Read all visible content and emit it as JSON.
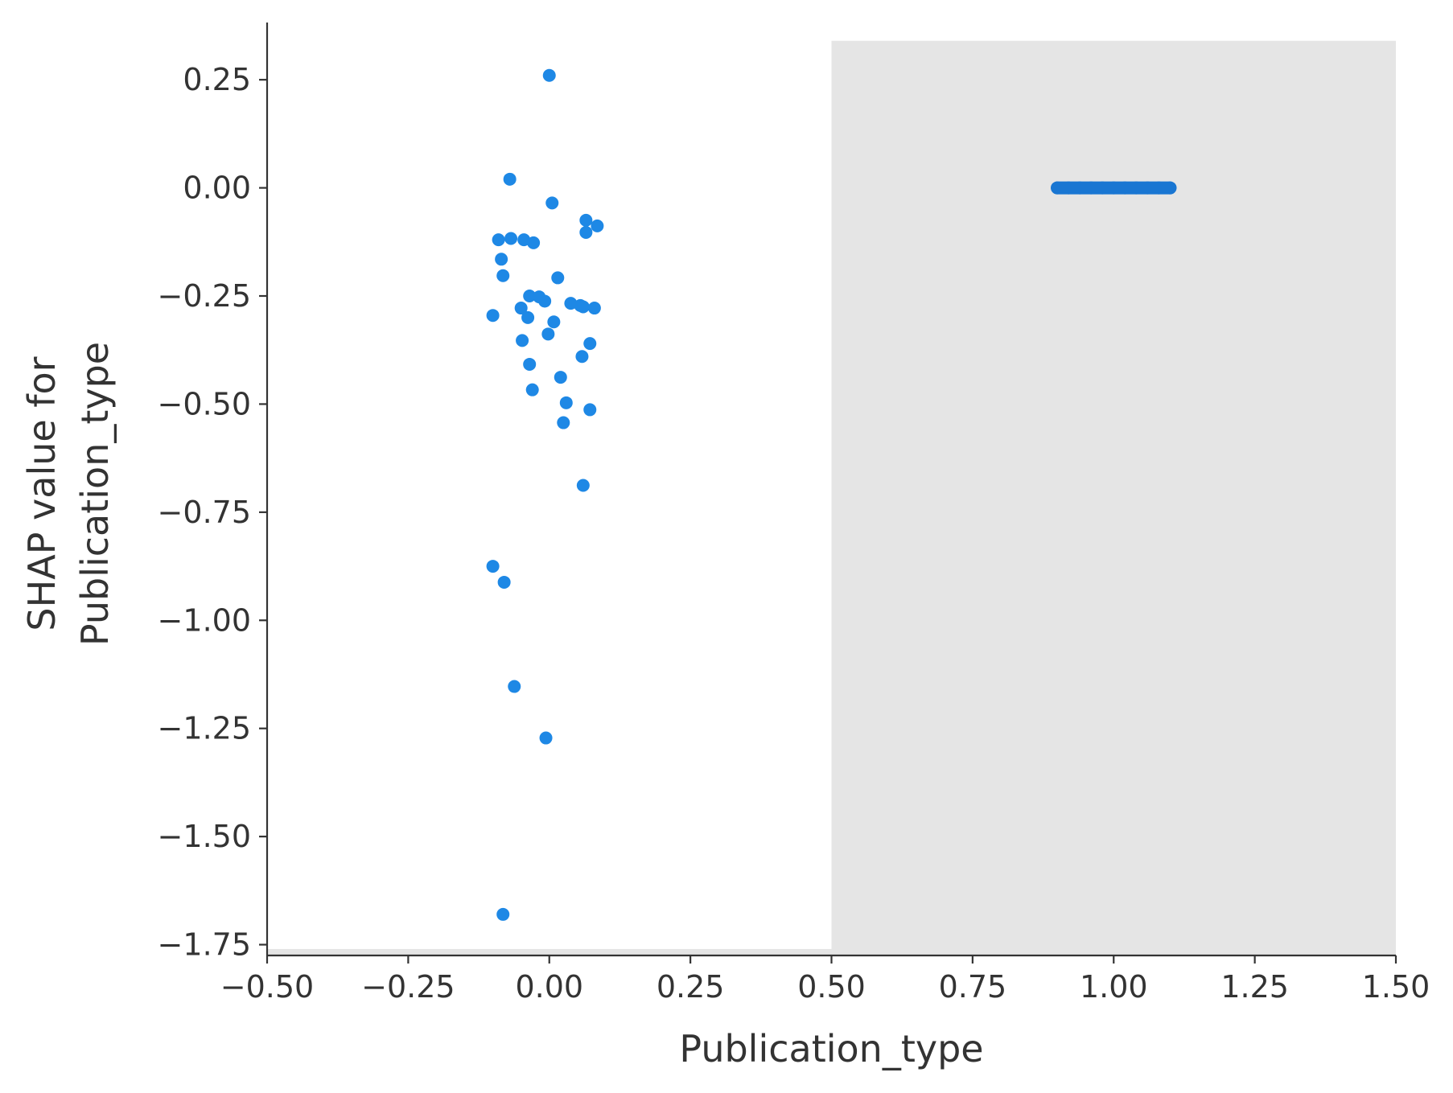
{
  "chart_data": {
    "type": "scatter",
    "xlabel": "Publication_type",
    "ylabel": [
      "SHAP value for",
      "Publication_type"
    ],
    "xlim": [
      -0.5,
      1.5
    ],
    "ylim": [
      -1.775,
      0.36
    ],
    "x_ticks": [
      -0.5,
      -0.25,
      0.0,
      0.25,
      0.5,
      0.75,
      1.0,
      1.25,
      1.5
    ],
    "x_tick_labels": [
      "−0.50",
      "−0.25",
      "0.00",
      "0.25",
      "0.50",
      "0.75",
      "1.00",
      "1.25",
      "1.50"
    ],
    "y_ticks": [
      0.25,
      0.0,
      -0.25,
      -0.5,
      -0.75,
      -1.0,
      -1.25,
      -1.5,
      -1.75
    ],
    "y_tick_labels": [
      "0.25",
      "0.00",
      "−0.25",
      "−0.50",
      "−0.75",
      "−1.00",
      "−1.25",
      "−1.50",
      "−1.75"
    ],
    "background_bands": [
      {
        "x0": 0.5,
        "x1": 1.5,
        "y0": -1.775,
        "y1": 0.34,
        "color": "#e5e5e5"
      },
      {
        "x0": -0.5,
        "x1": 0.5,
        "y0": -1.775,
        "y1": -1.76,
        "color": "#e5e5e5"
      }
    ],
    "series": [
      {
        "color": "#1e88e5",
        "points": [
          [
            0.0,
            0.26
          ],
          [
            -0.07,
            0.02
          ],
          [
            0.005,
            -0.035
          ],
          [
            0.065,
            -0.075
          ],
          [
            0.085,
            -0.088
          ],
          [
            0.065,
            -0.103
          ],
          [
            -0.09,
            -0.12
          ],
          [
            -0.068,
            -0.117
          ],
          [
            -0.045,
            -0.12
          ],
          [
            -0.028,
            -0.127
          ],
          [
            -0.085,
            -0.165
          ],
          [
            -0.082,
            -0.203
          ],
          [
            0.015,
            -0.208
          ],
          [
            -0.035,
            -0.25
          ],
          [
            -0.018,
            -0.252
          ],
          [
            -0.008,
            -0.262
          ],
          [
            0.038,
            -0.267
          ],
          [
            0.055,
            -0.272
          ],
          [
            0.06,
            -0.275
          ],
          [
            0.08,
            -0.278
          ],
          [
            -0.05,
            -0.278
          ],
          [
            -0.1,
            -0.295
          ],
          [
            -0.038,
            -0.3
          ],
          [
            0.008,
            -0.31
          ],
          [
            -0.002,
            -0.338
          ],
          [
            -0.048,
            -0.353
          ],
          [
            0.072,
            -0.36
          ],
          [
            0.058,
            -0.39
          ],
          [
            -0.035,
            -0.408
          ],
          [
            0.02,
            -0.438
          ],
          [
            -0.03,
            -0.467
          ],
          [
            0.03,
            -0.497
          ],
          [
            0.072,
            -0.513
          ],
          [
            0.025,
            -0.543
          ],
          [
            0.06,
            -0.688
          ],
          [
            -0.1,
            -0.875
          ],
          [
            -0.08,
            -0.912
          ],
          [
            -0.062,
            -1.153
          ],
          [
            -0.006,
            -1.272
          ],
          [
            -0.082,
            -1.68
          ]
        ]
      },
      {
        "color": "#1976d2",
        "points": [
          [
            0.9,
            0.0
          ],
          [
            0.92,
            0.0
          ],
          [
            0.94,
            0.0
          ],
          [
            0.96,
            0.0
          ],
          [
            0.98,
            0.0
          ],
          [
            1.0,
            0.0
          ],
          [
            1.02,
            0.0
          ],
          [
            1.04,
            0.0
          ],
          [
            1.06,
            0.0
          ],
          [
            1.08,
            0.0
          ],
          [
            1.1,
            0.0
          ]
        ]
      }
    ]
  }
}
